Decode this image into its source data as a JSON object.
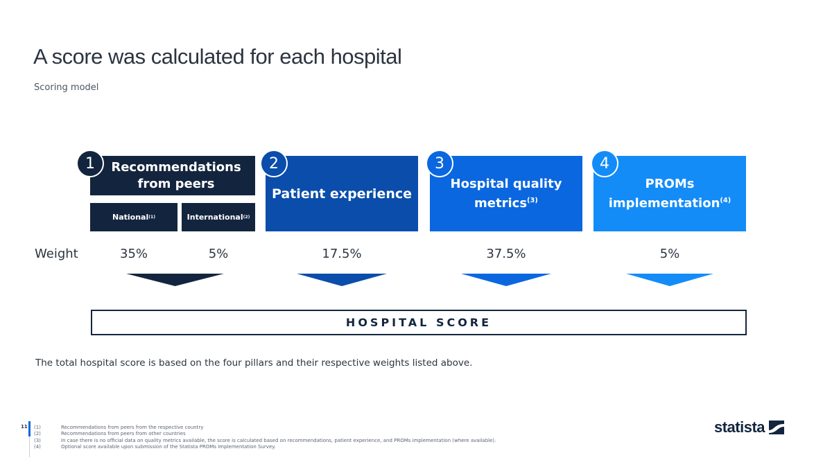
{
  "title": "A score was calculated for each hospital",
  "subtitle": "Scoring model",
  "weight_label": "Weight",
  "pillars": [
    {
      "number": "1",
      "label": "Recommendations from peers",
      "color": "#13253e",
      "sub": [
        {
          "label": "National",
          "note": "(1)",
          "weight": "35%"
        },
        {
          "label": "International",
          "note": "(2)",
          "weight": "5%"
        }
      ]
    },
    {
      "number": "2",
      "label": "Patient experience",
      "color": "#0a4dab",
      "weight": "17.5%"
    },
    {
      "number": "3",
      "label": "Hospital quality metrics",
      "note": "(3)",
      "color": "#0a67e0",
      "weight": "37.5%"
    },
    {
      "number": "4",
      "label": "PROMs implementation",
      "note": "(4)",
      "color": "#138cf8",
      "weight": "5%"
    }
  ],
  "score_label": "HOSPITAL SCORE",
  "description": "The total hospital score is based on the four pillars and their respective weights listed above.",
  "page_number": "11",
  "footnotes": [
    {
      "mark": "(1)",
      "text": "Recommendations from peers from the respective country"
    },
    {
      "mark": "(2)",
      "text": "Recommendations from peers from other countries"
    },
    {
      "mark": "(3)",
      "text": "In case there is no official data on quality metrics available, the score is calculated based on recommendations, patient experience, and PROMs implementation (where available)."
    },
    {
      "mark": "(4)",
      "text": "Optional score available upon submission of the Statista PROMs Implementation Survey."
    }
  ],
  "logo": "statista"
}
